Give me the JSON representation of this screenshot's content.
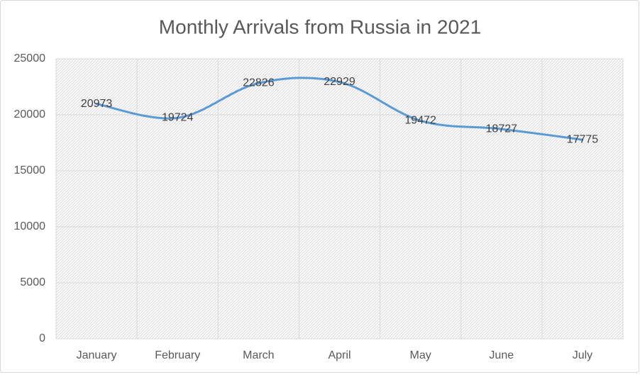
{
  "chart_data": {
    "type": "line",
    "title": "Monthly Arrivals from Russia in 2021",
    "categories": [
      "January",
      "February",
      "March",
      "April",
      "May",
      "June",
      "July"
    ],
    "values": [
      20973,
      19724,
      22826,
      22929,
      19472,
      18727,
      17775
    ],
    "color": "#5b9bd5",
    "ylim": [
      0,
      25000
    ],
    "yticks": [
      0,
      5000,
      10000,
      15000,
      20000,
      25000
    ],
    "grid": true
  }
}
